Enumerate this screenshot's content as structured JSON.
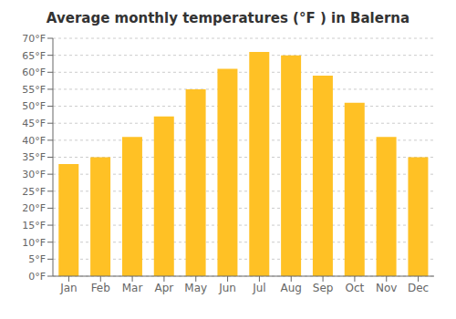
{
  "chart_data": {
    "type": "bar",
    "title": "Average monthly temperatures (°F ) in Balerna",
    "categories": [
      "Jan",
      "Feb",
      "Mar",
      "Apr",
      "May",
      "Jun",
      "Jul",
      "Aug",
      "Sep",
      "Oct",
      "Nov",
      "Dec"
    ],
    "values": [
      33,
      35,
      41,
      47,
      55,
      61,
      66,
      65,
      59,
      51,
      41,
      35
    ],
    "color": "#FFC125",
    "ylim": [
      0,
      70
    ],
    "yticks": [
      {
        "value": 0,
        "label": "0°F"
      },
      {
        "value": 5,
        "label": "5°F"
      },
      {
        "value": 10,
        "label": "10°F"
      },
      {
        "value": 15,
        "label": "15°F"
      },
      {
        "value": 20,
        "label": "20°F"
      },
      {
        "value": 25,
        "label": "25°F"
      },
      {
        "value": 30,
        "label": "30°F"
      },
      {
        "value": 35,
        "label": "35°F"
      },
      {
        "value": 40,
        "label": "40°F"
      },
      {
        "value": 45,
        "label": "45°F"
      },
      {
        "value": 50,
        "label": "50°F"
      },
      {
        "value": 55,
        "label": "55°F"
      },
      {
        "value": 60,
        "label": "60°F"
      },
      {
        "value": 65,
        "label": "65°F"
      },
      {
        "value": 70,
        "label": "70°F"
      }
    ],
    "grid": true
  }
}
